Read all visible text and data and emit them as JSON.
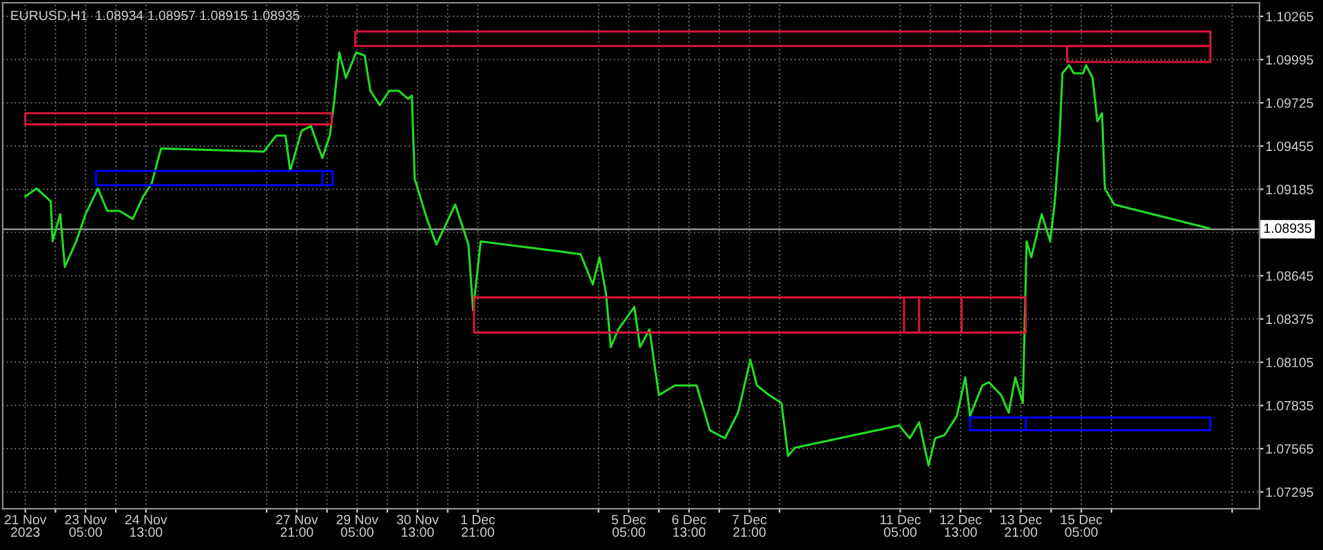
{
  "chart_data": {
    "type": "line",
    "title": "EURUSD,H1  1.08934 1.08957 1.08915 1.08935",
    "xlim": [
      "2023-11-21T09:00",
      "2023-12-19T03:30"
    ],
    "ylim": [
      1.0719,
      1.1035
    ],
    "xticks": [
      {
        "value": "2023-11-21T21:00",
        "label": "21 Nov 2023"
      },
      {
        "value": "2023-11-22T13:00",
        "label": null
      },
      {
        "value": "2023-11-23T05:00",
        "label": "23 Nov 05:00"
      },
      {
        "value": "2023-11-23T21:00",
        "label": null
      },
      {
        "value": "2023-11-24T13:00",
        "label": "24 Nov 13:00"
      },
      {
        "value": "2023-11-27T05:00",
        "label": null
      },
      {
        "value": "2023-11-27T21:00",
        "label": "27 Nov 21:00"
      },
      {
        "value": "2023-11-28T13:00",
        "label": null
      },
      {
        "value": "2023-11-29T05:00",
        "label": "29 Nov 05:00"
      },
      {
        "value": "2023-11-29T21:00",
        "label": null
      },
      {
        "value": "2023-11-30T13:00",
        "label": "30 Nov 13:00"
      },
      {
        "value": "2023-12-01T05:00",
        "label": null
      },
      {
        "value": "2023-12-01T21:00",
        "label": "1 Dec 21:00"
      },
      {
        "value": "2023-12-04T13:00",
        "label": null
      },
      {
        "value": "2023-12-05T05:00",
        "label": "5 Dec 05:00"
      },
      {
        "value": "2023-12-05T21:00",
        "label": null
      },
      {
        "value": "2023-12-06T13:00",
        "label": "6 Dec 13:00"
      },
      {
        "value": "2023-12-07T05:00",
        "label": null
      },
      {
        "value": "2023-12-07T21:00",
        "label": "7 Dec 21:00"
      },
      {
        "value": "2023-12-08T13:00",
        "label": null
      },
      {
        "value": "2023-12-11T05:00",
        "label": "11 Dec 05:00"
      },
      {
        "value": "2023-12-11T21:00",
        "label": null
      },
      {
        "value": "2023-12-12T13:00",
        "label": "12 Dec 13:00"
      },
      {
        "value": "2023-12-13T05:00",
        "label": null
      },
      {
        "value": "2023-12-13T21:00",
        "label": "13 Dec 21:00"
      },
      {
        "value": "2023-12-14T13:00",
        "label": null
      },
      {
        "value": "2023-12-15T05:00",
        "label": "15 Dec 05:00"
      },
      {
        "value": "2023-12-15T21:00",
        "label": null
      },
      {
        "value": "2023-12-18T13:00",
        "label": null
      }
    ],
    "yticks": [
      1.07295,
      1.07565,
      1.07835,
      1.08105,
      1.08375,
      1.08645,
      {
        "value": 1.08915,
        "label": null
      },
      1.09185,
      1.09455,
      1.09725,
      1.09995,
      1.10265
    ],
    "grid": true,
    "ref_lines": [
      {
        "axis": "y",
        "value": 1.08935,
        "label": "1.08935",
        "color": "#a0a0a0"
      }
    ],
    "series": [
      {
        "color": "#22dd22",
        "x": [
          "2023-11-21T21:00",
          "2023-11-22T03:00",
          "2023-11-22T10:30",
          "2023-11-22T11:30",
          "2023-11-22T15:30",
          "2023-11-22T18:00",
          "2023-11-23T00:00",
          "2023-11-23T05:00",
          "2023-11-23T11:30",
          "2023-11-23T16:30",
          "2023-11-23T23:00",
          "2023-11-24T06:00",
          "2023-11-24T11:30",
          "2023-11-24T16:00",
          "2023-11-24T21:00",
          "2023-11-27T03:30",
          "2023-11-27T10:00",
          "2023-11-27T15:00",
          "2023-11-27T17:30",
          "2023-11-27T23:30",
          "2023-11-28T04:30",
          "2023-11-28T10:30",
          "2023-11-28T14:30",
          "2023-11-28T17:00",
          "2023-11-28T19:30",
          "2023-11-28T23:00",
          "2023-11-29T04:30",
          "2023-11-29T09:00",
          "2023-11-29T12:00",
          "2023-11-29T17:00",
          "2023-11-29T22:00",
          "2023-11-30T03:00",
          "2023-11-30T08:00",
          "2023-11-30T10:00",
          "2023-11-30T11:30",
          "2023-11-30T18:00",
          "2023-11-30T23:00",
          "2023-12-01T09:00",
          "2023-12-01T16:00",
          "2023-12-01T18:30",
          "2023-12-01T22:30",
          "2023-12-04T03:30",
          "2023-12-04T10:00",
          "2023-12-04T13:30",
          "2023-12-04T17:00",
          "2023-12-04T19:30",
          "2023-12-04T23:30",
          "2023-12-05T08:00",
          "2023-12-05T11:00",
          "2023-12-05T16:00",
          "2023-12-05T21:00",
          "2023-12-06T05:30",
          "2023-12-06T10:30",
          "2023-12-06T17:00",
          "2023-12-07T00:00",
          "2023-12-07T08:00",
          "2023-12-07T15:00",
          "2023-12-07T21:30",
          "2023-12-08T01:00",
          "2023-12-08T07:30",
          "2023-12-08T14:00",
          "2023-12-08T17:30",
          "2023-12-08T21:00",
          "2023-12-11T04:30",
          "2023-12-11T10:00",
          "2023-12-11T15:00",
          "2023-12-11T20:00",
          "2023-12-11T23:30",
          "2023-12-12T04:30",
          "2023-12-12T11:00",
          "2023-12-12T15:30",
          "2023-12-12T18:00",
          "2023-12-13T00:30",
          "2023-12-13T04:00",
          "2023-12-13T10:30",
          "2023-12-13T14:30",
          "2023-12-13T18:00",
          "2023-12-13T22:00",
          "2023-12-14T00:00",
          "2023-12-14T02:30",
          "2023-12-14T08:00",
          "2023-12-14T12:30",
          "2023-12-14T15:00",
          "2023-12-14T17:30",
          "2023-12-14T19:00",
          "2023-12-14T22:30",
          "2023-12-15T01:00",
          "2023-12-15T06:00",
          "2023-12-15T07:30",
          "2023-12-15T11:00",
          "2023-12-15T13:30",
          "2023-12-15T16:00",
          "2023-12-15T17:30",
          "2023-12-15T22:30",
          "2023-12-18T01:00"
        ],
        "values": [
          1.0914,
          1.0919,
          1.0911,
          1.0886,
          1.0903,
          1.087,
          1.0886,
          1.0903,
          1.0919,
          1.0905,
          1.0905,
          1.09,
          1.0914,
          1.0922,
          1.0944,
          1.0942,
          1.0952,
          1.0952,
          1.093,
          1.0955,
          1.0958,
          1.0938,
          1.0952,
          1.0975,
          1.1004,
          1.0988,
          1.1004,
          1.1002,
          1.098,
          1.0971,
          1.098,
          1.098,
          1.0975,
          1.0977,
          1.0925,
          1.09,
          1.0884,
          1.0909,
          1.0884,
          1.0843,
          1.0886,
          1.0878,
          1.0859,
          1.0876,
          1.0853,
          1.082,
          1.0831,
          1.0845,
          1.082,
          1.0831,
          1.079,
          1.0796,
          1.0796,
          1.0796,
          1.0768,
          1.0763,
          1.0779,
          1.0812,
          1.0796,
          1.079,
          1.0785,
          1.0752,
          1.0757,
          1.0771,
          1.0763,
          1.0773,
          1.0746,
          1.0763,
          1.0765,
          1.0777,
          1.0801,
          1.0777,
          1.0796,
          1.0798,
          1.079,
          1.0779,
          1.0801,
          1.0785,
          1.0886,
          1.0876,
          1.0903,
          1.0886,
          1.0911,
          1.0952,
          1.0991,
          1.0996,
          1.0991,
          1.0991,
          1.0996,
          1.0988,
          1.0961,
          1.0966,
          1.0919,
          1.0909,
          1.0894
        ]
      },
      {
        "color": "#dc143c",
        "x": [
          "2023-11-21T21:00",
          "2023-11-28T15:30",
          "2023-11-28T15:30",
          "2023-11-21T21:00",
          "2023-11-21T21:00",
          "2023-11-28T15:30"
        ],
        "values": [
          1.0966,
          1.0966,
          1.0959,
          1.0959,
          1.0966,
          1.0966
        ]
      },
      {
        "color": "#0000ff",
        "x": [
          "2023-11-23T10:30",
          "2023-11-28T16:00",
          "2023-11-28T16:00",
          "2023-11-23T10:30",
          "2023-11-23T10:30",
          "2023-11-28T10:30",
          "2023-11-28T10:30"
        ],
        "values": [
          1.093,
          1.093,
          1.0921,
          1.0921,
          1.093,
          1.093,
          1.0921
        ]
      },
      {
        "color": "#dc143c",
        "x": [
          "2023-11-29T04:00",
          "2023-12-18T01:30",
          "2023-12-18T01:30",
          "2023-11-29T04:00",
          "2023-11-29T04:00",
          "2023-12-18T01:30"
        ],
        "values": [
          1.1017,
          1.1017,
          1.1008,
          1.1008,
          1.1017,
          1.1017
        ]
      },
      {
        "color": "#dc143c",
        "x": [
          "2023-12-14T21:30",
          "2023-12-18T01:30",
          "2023-12-18T01:30",
          "2023-12-14T21:30",
          "2023-12-14T21:30",
          "2023-12-18T01:30"
        ],
        "values": [
          1.1008,
          1.1008,
          1.0998,
          1.0998,
          1.1008,
          1.1008
        ]
      },
      {
        "color": "#dc143c",
        "x": [
          "2023-12-01T19:00",
          "2023-12-13T23:30",
          "2023-12-13T23:30",
          "2023-12-01T19:00",
          "2023-12-01T19:00",
          "2023-12-11T07:00",
          "2023-12-11T07:00",
          "2023-12-11T15:00",
          "2023-12-11T15:00",
          "2023-12-12T13:30",
          "2023-12-12T13:30"
        ],
        "values": [
          1.0851,
          1.0851,
          1.0829,
          1.0829,
          1.0851,
          1.0851,
          1.0829,
          1.0829,
          1.0851,
          1.0851,
          1.0829
        ]
      },
      {
        "color": "#0000ff",
        "x": [
          "2023-12-12T18:00",
          "2023-12-18T01:30",
          "2023-12-18T01:30",
          "2023-12-12T18:00",
          "2023-12-12T18:00",
          "2023-12-13T23:30",
          "2023-12-13T23:30"
        ],
        "values": [
          1.0776,
          1.0776,
          1.0768,
          1.0768,
          1.0776,
          1.0776,
          1.0768
        ]
      }
    ]
  }
}
